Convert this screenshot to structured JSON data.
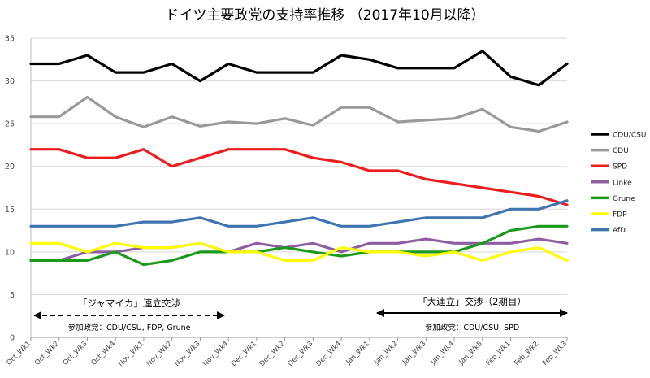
{
  "chart_data": {
    "type": "line",
    "title": "ドイツ主要政党の支持率推移 （2017年10月以降）",
    "xlabel": "",
    "ylabel": "",
    "ylim": [
      0,
      35
    ],
    "yticks": [
      0,
      5,
      10,
      15,
      20,
      25,
      30,
      35
    ],
    "grid": true,
    "legend_position": "right",
    "categories": [
      "Oct_Wk1",
      "Oct_Wk2",
      "Oct_Wk3",
      "Oct_Wk4",
      "Nov_Wk1",
      "Nov_Wk2",
      "Nov_Wk3",
      "Nov_Wk4",
      "Dec_Wk1",
      "Dec_Wk2",
      "Dec_Wk3",
      "Dec_Wk4",
      "Jan_Wk1",
      "Jan_Wk2",
      "Jan_Wk3",
      "Jan_Wk4",
      "Jan_Wk5",
      "Feb_Wk1",
      "Feb_Wk2",
      "Feb_Wk3"
    ],
    "series": [
      {
        "name": "CDU/CSU",
        "color": "#000000",
        "values": [
          32,
          32,
          33,
          31,
          31,
          32,
          30,
          32,
          31,
          31,
          31,
          33,
          32.5,
          31.5,
          31.5,
          31.5,
          33.5,
          30.5,
          29.5,
          32
        ]
      },
      {
        "name": "CDU",
        "color": "#999999",
        "values": [
          25.8,
          25.8,
          28.1,
          25.8,
          24.6,
          25.8,
          24.7,
          25.2,
          25,
          25.6,
          24.8,
          26.9,
          26.9,
          25.2,
          25.4,
          25.6,
          26.7,
          24.6,
          24.1,
          25.2
        ]
      },
      {
        "name": "SPD",
        "color": "#ee1c1c",
        "values": [
          22,
          22,
          21,
          21,
          22,
          20,
          21,
          22,
          22,
          22,
          21,
          20.5,
          19.5,
          19.5,
          18.5,
          18,
          17.5,
          17,
          16.5,
          15.5
        ]
      },
      {
        "name": "Linke",
        "color": "#8e5ea2",
        "values": [
          9,
          9,
          10,
          10,
          10.5,
          10.5,
          11,
          10,
          11,
          10.5,
          11,
          10,
          11,
          11,
          11.5,
          11,
          11,
          11,
          11.5,
          11
        ]
      },
      {
        "name": "Grune",
        "color": "#1a9a1a",
        "values": [
          9,
          9,
          9,
          10,
          8.5,
          9,
          10,
          10,
          10,
          10.5,
          10,
          9.5,
          10,
          10,
          10,
          10,
          11,
          12.5,
          13,
          13
        ]
      },
      {
        "name": "FDP",
        "color": "#ffff00",
        "values": [
          11,
          11,
          10,
          11,
          10.5,
          10.5,
          11,
          10,
          10,
          9,
          9,
          10.5,
          10,
          10,
          9.5,
          10,
          9,
          10,
          10.5,
          9
        ]
      },
      {
        "name": "AfD",
        "color": "#3f74b1",
        "values": [
          13,
          13,
          13,
          13,
          13.5,
          13.5,
          14,
          13,
          13,
          13.5,
          14,
          13,
          13,
          13.5,
          14,
          14,
          14,
          15,
          15,
          16
        ]
      }
    ],
    "annotations": [
      {
        "label": "「ジャマイカ」連立交渉",
        "sublabel": "参加政党：CDU/CSU, FDP, Grune",
        "from": "Oct_Wk1",
        "to": "Nov_Wk4",
        "style": "dashed"
      },
      {
        "label": "「大連立」交渉（2期目）",
        "sublabel": "参加政党：CDU/CSU, SPD",
        "from": "Jan_Wk1",
        "to": "Feb_Wk3",
        "style": "solid"
      }
    ]
  }
}
